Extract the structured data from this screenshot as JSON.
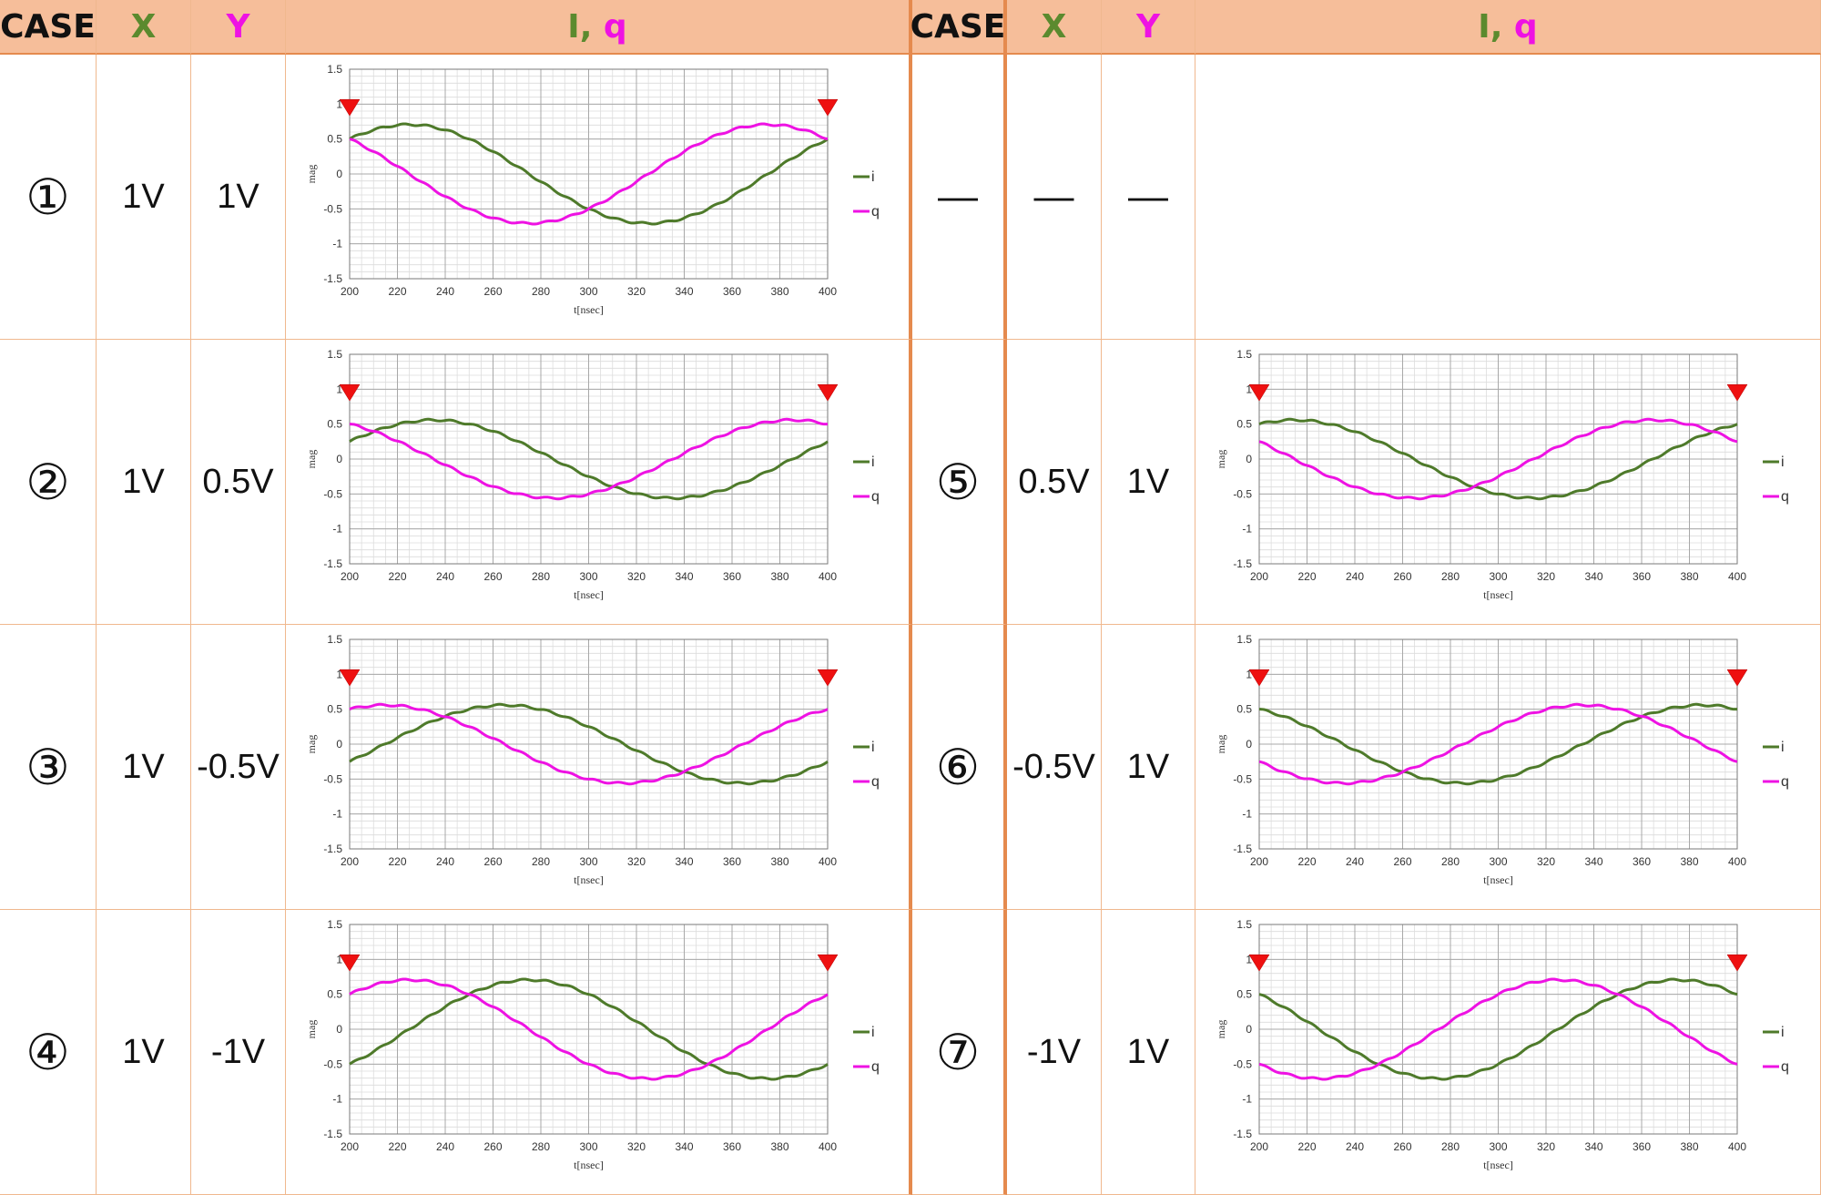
{
  "headers": {
    "case": "CASE",
    "x": "X",
    "y": "Y",
    "iq_i": "I",
    "iq_sep": ", ",
    "iq_q": "q"
  },
  "dash": "—",
  "left": [
    {
      "num": "①",
      "x": "1V",
      "y": "1V"
    },
    {
      "num": "②",
      "x": "1V",
      "y": "0.5V"
    },
    {
      "num": "③",
      "x": "1V",
      "y": "-0.5V"
    },
    {
      "num": "④",
      "x": "1V",
      "y": "-1V"
    }
  ],
  "right": [
    {
      "num": "—",
      "x": "—",
      "y": "—"
    },
    {
      "num": "⑤",
      "x": "0.5V",
      "y": "1V"
    },
    {
      "num": "⑥",
      "x": "-0.5V",
      "y": "1V"
    },
    {
      "num": "⑦",
      "x": "-1V",
      "y": "1V"
    }
  ],
  "chart_data": [
    {
      "case": "①",
      "type": "line",
      "xlabel": "t[nsec]",
      "ylabel": "mag",
      "xlim": [
        200,
        400
      ],
      "ylim": [
        -1.5,
        1.5
      ],
      "xticks": [
        200,
        220,
        240,
        260,
        280,
        300,
        320,
        340,
        360,
        380,
        400
      ],
      "yticks": [
        -1.5,
        -1,
        -0.5,
        0,
        0.5,
        1,
        1.5
      ],
      "markers_x": [
        200,
        400
      ],
      "legend_position": "right",
      "grid": true,
      "series": [
        {
          "name": "i",
          "color": "#4e7a2a",
          "amplitude": 0.7071,
          "phase_deg": 45
        },
        {
          "name": "q",
          "color": "#ee12e3",
          "amplitude": 0.7071,
          "phase_deg": -45
        }
      ]
    },
    {
      "case": "②",
      "type": "line",
      "xlabel": "t[nsec]",
      "ylabel": "mag",
      "xlim": [
        200,
        400
      ],
      "ylim": [
        -1.5,
        1.5
      ],
      "xticks": [
        200,
        220,
        240,
        260,
        280,
        300,
        320,
        340,
        360,
        380,
        400
      ],
      "yticks": [
        -1.5,
        -1,
        -0.5,
        0,
        0.5,
        1,
        1.5
      ],
      "markers_x": [
        200,
        400
      ],
      "legend_position": "right",
      "grid": true,
      "series": [
        {
          "name": "i",
          "color": "#4e7a2a",
          "amplitude": 0.559,
          "phase_deg": 63.43
        },
        {
          "name": "q",
          "color": "#ee12e3",
          "amplitude": 0.559,
          "phase_deg": -26.57
        }
      ]
    },
    {
      "case": "③",
      "type": "line",
      "xlabel": "t[nsec]",
      "ylabel": "mag",
      "xlim": [
        200,
        400
      ],
      "ylim": [
        -1.5,
        1.5
      ],
      "xticks": [
        200,
        220,
        240,
        260,
        280,
        300,
        320,
        340,
        360,
        380,
        400
      ],
      "yticks": [
        -1.5,
        -1,
        -0.5,
        0,
        0.5,
        1,
        1.5
      ],
      "markers_x": [
        200,
        400
      ],
      "legend_position": "right",
      "grid": true,
      "series": [
        {
          "name": "i",
          "color": "#4e7a2a",
          "amplitude": 0.559,
          "phase_deg": 116.57
        },
        {
          "name": "q",
          "color": "#ee12e3",
          "amplitude": 0.559,
          "phase_deg": 26.57
        }
      ]
    },
    {
      "case": "④",
      "type": "line",
      "xlabel": "t[nsec]",
      "ylabel": "mag",
      "xlim": [
        200,
        400
      ],
      "ylim": [
        -1.5,
        1.5
      ],
      "xticks": [
        200,
        220,
        240,
        260,
        280,
        300,
        320,
        340,
        360,
        380,
        400
      ],
      "yticks": [
        -1.5,
        -1,
        -0.5,
        0,
        0.5,
        1,
        1.5
      ],
      "markers_x": [
        200,
        400
      ],
      "legend_position": "right",
      "grid": true,
      "series": [
        {
          "name": "i",
          "color": "#4e7a2a",
          "amplitude": 0.7071,
          "phase_deg": 135
        },
        {
          "name": "q",
          "color": "#ee12e3",
          "amplitude": 0.7071,
          "phase_deg": 45
        }
      ]
    },
    {
      "case": "⑤",
      "type": "line",
      "xlabel": "t[nsec]",
      "ylabel": "mag",
      "xlim": [
        200,
        400
      ],
      "ylim": [
        -1.5,
        1.5
      ],
      "xticks": [
        200,
        220,
        240,
        260,
        280,
        300,
        320,
        340,
        360,
        380,
        400
      ],
      "yticks": [
        -1.5,
        -1,
        -0.5,
        0,
        0.5,
        1,
        1.5
      ],
      "markers_x": [
        200,
        400
      ],
      "legend_position": "right",
      "grid": true,
      "series": [
        {
          "name": "i",
          "color": "#4e7a2a",
          "amplitude": 0.559,
          "phase_deg": 26.57
        },
        {
          "name": "q",
          "color": "#ee12e3",
          "amplitude": 0.559,
          "phase_deg": -63.43
        }
      ]
    },
    {
      "case": "⑥",
      "type": "line",
      "xlabel": "t[nsec]",
      "ylabel": "mag",
      "xlim": [
        200,
        400
      ],
      "ylim": [
        -1.5,
        1.5
      ],
      "xticks": [
        200,
        220,
        240,
        260,
        280,
        300,
        320,
        340,
        360,
        380,
        400
      ],
      "yticks": [
        -1.5,
        -1,
        -0.5,
        0,
        0.5,
        1,
        1.5
      ],
      "markers_x": [
        200,
        400
      ],
      "legend_position": "right",
      "grid": true,
      "series": [
        {
          "name": "i",
          "color": "#4e7a2a",
          "amplitude": 0.559,
          "phase_deg": -26.57
        },
        {
          "name": "q",
          "color": "#ee12e3",
          "amplitude": 0.559,
          "phase_deg": -116.57
        }
      ]
    },
    {
      "case": "⑦",
      "type": "line",
      "xlabel": "t[nsec]",
      "ylabel": "mag",
      "xlim": [
        200,
        400
      ],
      "ylim": [
        -1.5,
        1.5
      ],
      "xticks": [
        200,
        220,
        240,
        260,
        280,
        300,
        320,
        340,
        360,
        380,
        400
      ],
      "yticks": [
        -1.5,
        -1,
        -0.5,
        0,
        0.5,
        1,
        1.5
      ],
      "markers_x": [
        200,
        400
      ],
      "legend_position": "right",
      "grid": true,
      "series": [
        {
          "name": "i",
          "color": "#4e7a2a",
          "amplitude": 0.7071,
          "phase_deg": -45
        },
        {
          "name": "q",
          "color": "#ee12e3",
          "amplitude": 0.7071,
          "phase_deg": -135
        }
      ]
    }
  ]
}
